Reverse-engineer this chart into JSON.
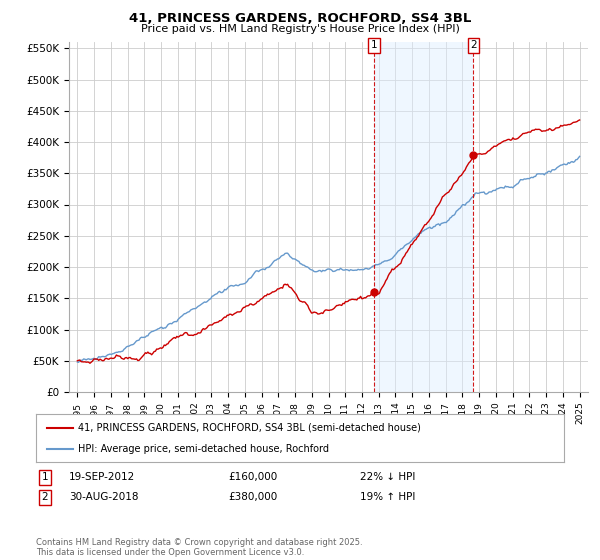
{
  "title": "41, PRINCESS GARDENS, ROCHFORD, SS4 3BL",
  "subtitle": "Price paid vs. HM Land Registry's House Price Index (HPI)",
  "ylabel_ticks": [
    "£0",
    "£50K",
    "£100K",
    "£150K",
    "£200K",
    "£250K",
    "£300K",
    "£350K",
    "£400K",
    "£450K",
    "£500K",
    "£550K"
  ],
  "ytick_values": [
    0,
    50000,
    100000,
    150000,
    200000,
    250000,
    300000,
    350000,
    400000,
    450000,
    500000,
    550000
  ],
  "xlim": [
    1994.5,
    2025.5
  ],
  "ylim": [
    0,
    560000
  ],
  "transaction1": {
    "year": 2012.72,
    "price": 160000,
    "label": "1",
    "date": "19-SEP-2012",
    "hpi_pct": "22% ↓ HPI"
  },
  "transaction2": {
    "year": 2018.66,
    "price": 380000,
    "label": "2",
    "date": "30-AUG-2018",
    "hpi_pct": "19% ↑ HPI"
  },
  "legend_entries": [
    "41, PRINCESS GARDENS, ROCHFORD, SS4 3BL (semi-detached house)",
    "HPI: Average price, semi-detached house, Rochford"
  ],
  "footnote": "Contains HM Land Registry data © Crown copyright and database right 2025.\nThis data is licensed under the Open Government Licence v3.0.",
  "line_color_red": "#cc0000",
  "line_color_blue": "#6699cc",
  "fill_color_blue": "#ddeeff",
  "vline_color": "#cc0000",
  "box_color": "#cc0000",
  "background_color": "#ffffff",
  "grid_color": "#cccccc"
}
